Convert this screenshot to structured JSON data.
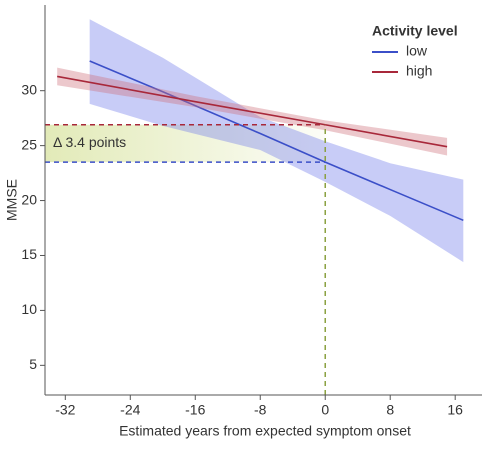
{
  "chart_data": {
    "type": "line",
    "x_label": "Estimated years from expected symptom onset",
    "y_label": "MMSE",
    "xlim": [
      -34.5,
      19.3
    ],
    "ylim": [
      2.3,
      37.8
    ],
    "xticks": [
      -32,
      -24,
      -16,
      -8,
      0,
      8,
      16
    ],
    "yticks": [
      5,
      10,
      15,
      20,
      25,
      30
    ],
    "legend_title": "Activity level",
    "legend_position": "upper right",
    "series": [
      {
        "name": "low",
        "color": "#3b4fc8",
        "band_color": "rgba(110,120,235,0.38)",
        "x": [
          -29,
          -20,
          -8,
          0,
          8,
          17
        ],
        "values": [
          32.7,
          29.9,
          26.1,
          23.5,
          21.0,
          18.2
        ],
        "upper": [
          36.5,
          33.0,
          27.6,
          25.4,
          23.4,
          21.9
        ],
        "lower": [
          28.8,
          26.8,
          24.6,
          21.7,
          18.6,
          14.4
        ]
      },
      {
        "name": "high",
        "color": "#a8283a",
        "band_color": "rgba(205,110,120,0.38)",
        "x": [
          -33,
          -16,
          0,
          15
        ],
        "values": [
          31.3,
          29.0,
          26.9,
          24.9
        ],
        "upper": [
          32.1,
          29.5,
          27.3,
          25.7
        ],
        "lower": [
          30.5,
          28.5,
          26.4,
          24.1
        ]
      }
    ],
    "reference_lines": [
      {
        "orientation": "horizontal",
        "value": 26.9,
        "color": "#a8283a"
      },
      {
        "orientation": "horizontal",
        "value": 23.5,
        "color": "#3b4fc8"
      },
      {
        "orientation": "vertical",
        "value": 0,
        "color": "#8aa040"
      }
    ],
    "annotation": "Δ 3.4 points"
  }
}
